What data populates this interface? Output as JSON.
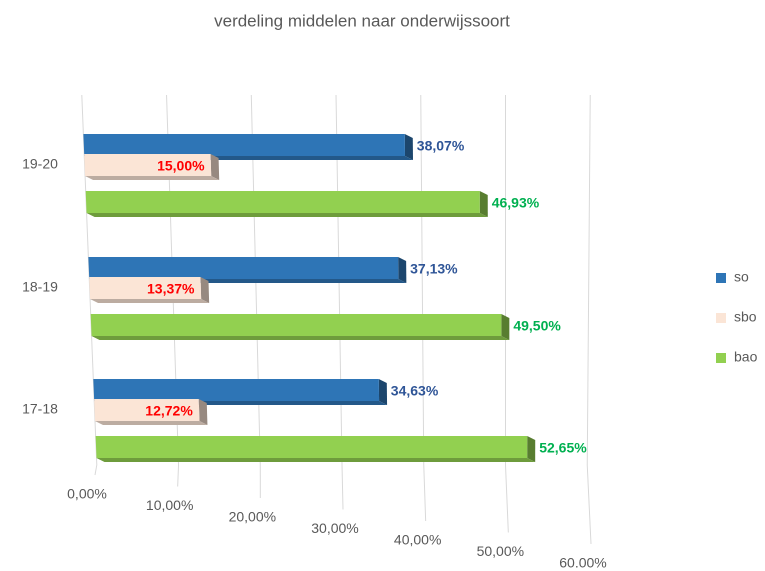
{
  "chart_data": {
    "type": "bar3d_horizontal",
    "title": "verdeling middelen naar onderwijssoort",
    "categories": [
      "19-20",
      "18-19",
      "17-18"
    ],
    "series": [
      {
        "name": "so",
        "color": "#2e75b6",
        "label_color": "#2f5597",
        "values": [
          38.07,
          37.13,
          34.63
        ],
        "value_labels": [
          "38,07%",
          "37,13%",
          "34,63%"
        ]
      },
      {
        "name": "sbo",
        "color": "#fbe5d6",
        "label_color": "#ff0000",
        "values": [
          15.0,
          13.37,
          12.72
        ],
        "value_labels": [
          "15,00%",
          "13,37%",
          "12,72%"
        ]
      },
      {
        "name": "bao",
        "color": "#92d050",
        "label_color": "#00b050",
        "values": [
          46.93,
          49.5,
          52.65
        ],
        "value_labels": [
          "46,93%",
          "49,50%",
          "52,65%"
        ]
      }
    ],
    "xlim": [
      0,
      60
    ],
    "xticks": [
      {
        "value": 0,
        "label": "0,00%"
      },
      {
        "value": 10,
        "label": "10,00%"
      },
      {
        "value": 20,
        "label": "20,00%"
      },
      {
        "value": 30,
        "label": "30,00%"
      },
      {
        "value": 40,
        "label": "40,00%"
      },
      {
        "value": 50,
        "label": "50,00%"
      },
      {
        "value": 60,
        "label": "60.00%"
      }
    ],
    "grid": true,
    "legend": "right"
  }
}
